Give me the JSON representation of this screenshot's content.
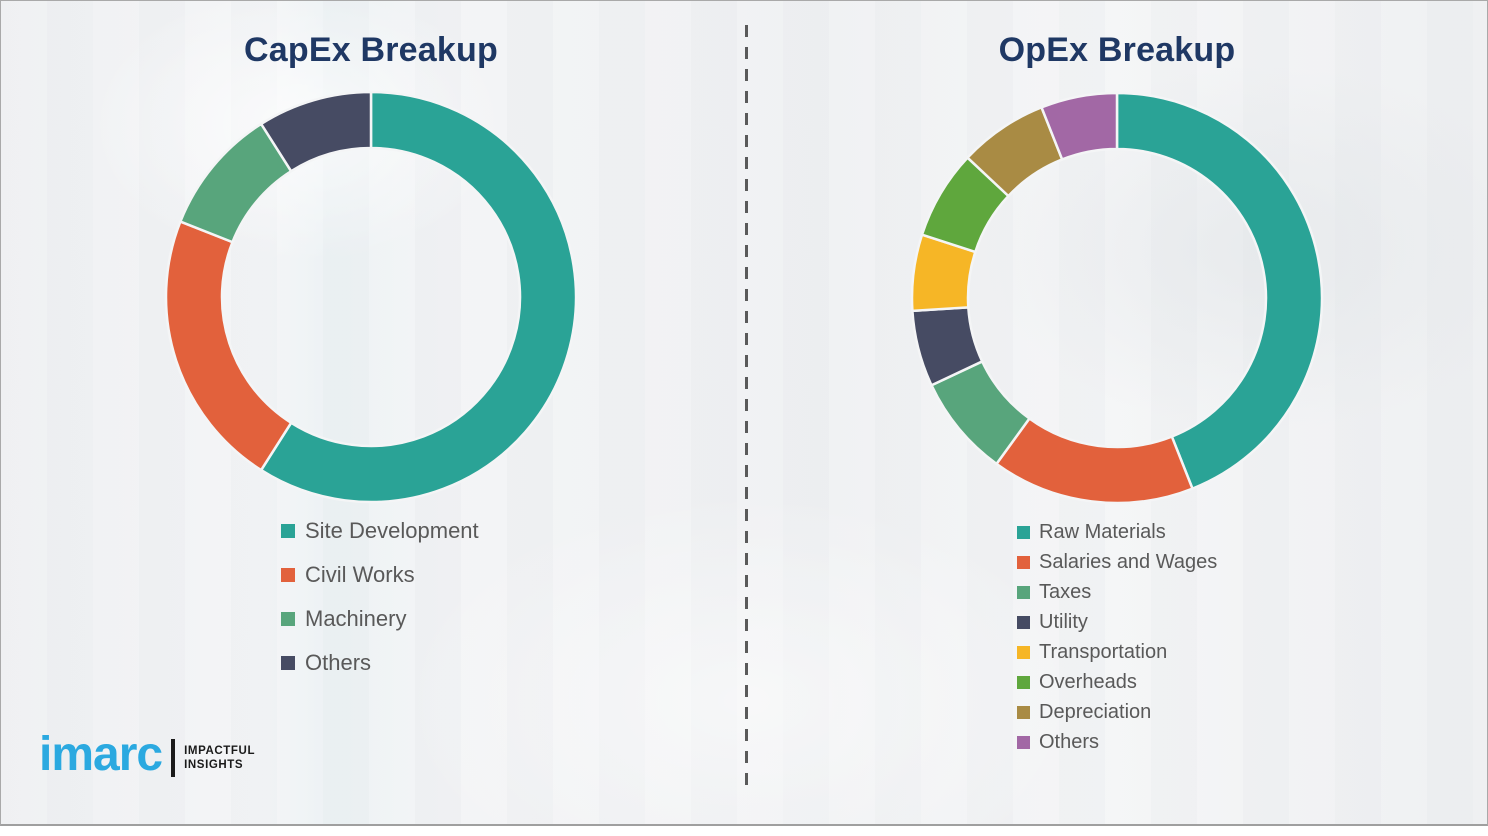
{
  "page": {
    "background_color": "#f0f1f3",
    "divider_style": "vertical-dashed-gray"
  },
  "chart_data": [
    {
      "type": "pie",
      "variant": "donut",
      "title": "CapEx Breakup",
      "categories": [
        "Site Development",
        "Civil Works",
        "Machinery",
        "Others"
      ],
      "values": [
        59,
        22,
        10,
        9
      ],
      "colors": [
        "#2aa396",
        "#e2613c",
        "#58a57c",
        "#464b63"
      ],
      "start_angle_deg": 0,
      "direction": "clockwise",
      "hole_ratio": 0.73,
      "legend_position": "bottom-left",
      "value_labels_visible": false
    },
    {
      "type": "pie",
      "variant": "donut",
      "title": "OpEx Breakup",
      "categories": [
        "Raw Materials",
        "Salaries and Wages",
        "Taxes",
        "Utility",
        "Transportation",
        "Overheads",
        "Depreciation",
        "Others"
      ],
      "values": [
        44,
        16,
        8,
        6,
        6,
        7,
        7,
        6
      ],
      "colors": [
        "#2aa396",
        "#e2613c",
        "#58a57c",
        "#464b63",
        "#f6b626",
        "#5fa73d",
        "#a98b44",
        "#a268a5"
      ],
      "start_angle_deg": 0,
      "direction": "clockwise",
      "hole_ratio": 0.73,
      "legend_position": "bottom-left",
      "value_labels_visible": false
    }
  ],
  "logo": {
    "brand": "imarc",
    "tagline_line1": "IMPACTFUL",
    "tagline_line2": "INSIGHTS",
    "brand_color": "#2ba9e0"
  }
}
